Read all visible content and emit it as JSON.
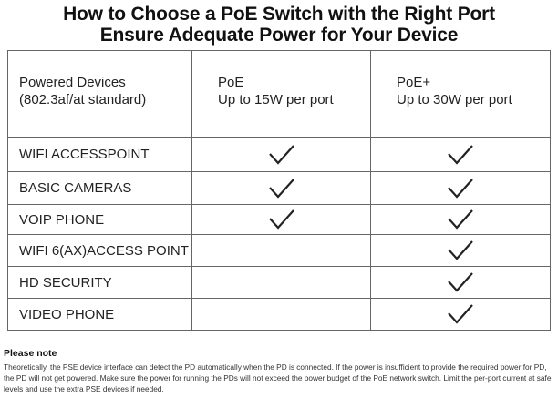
{
  "title": {
    "line1": "How to Choose a PoE Switch with the Right Port",
    "line2": "Ensure Adequate Power for Your Device"
  },
  "table": {
    "headers": [
      {
        "line1": "Powered Devices",
        "line2": "(802.3af/at standard)"
      },
      {
        "line1": "PoE",
        "line2": "Up to 15W per port"
      },
      {
        "line1": "PoE+",
        "line2": "Up to 30W per port"
      }
    ],
    "rows": [
      {
        "device": "WIFI ACCESSPOINT",
        "poe": true,
        "poe_plus": true
      },
      {
        "device": "BASIC CAMERAS",
        "poe": true,
        "poe_plus": true
      },
      {
        "device": "VOIP PHONE",
        "poe": true,
        "poe_plus": true
      },
      {
        "device": "WIFI 6(AX)ACCESS POINT",
        "poe": false,
        "poe_plus": true
      },
      {
        "device": "HD SECURITY",
        "poe": false,
        "poe_plus": true
      },
      {
        "device": "VIDEO PHONE",
        "poe": false,
        "poe_plus": true
      }
    ],
    "check_icon": "checkmark-icon",
    "row_heights": [
      38,
      36,
      33,
      35,
      35,
      35
    ]
  },
  "note": {
    "heading": "Please note",
    "body": "Theoretically, the PSE device interface can detect the PD automatically when the PD is connected. If the power is insufficient to provide the required power for PD, the PD will not get powered. Make sure the power for running the PDs will not exceed the power budget of the PoE network switch. Limit the per-port current at safe levels and use the extra PSE devices if needed."
  }
}
